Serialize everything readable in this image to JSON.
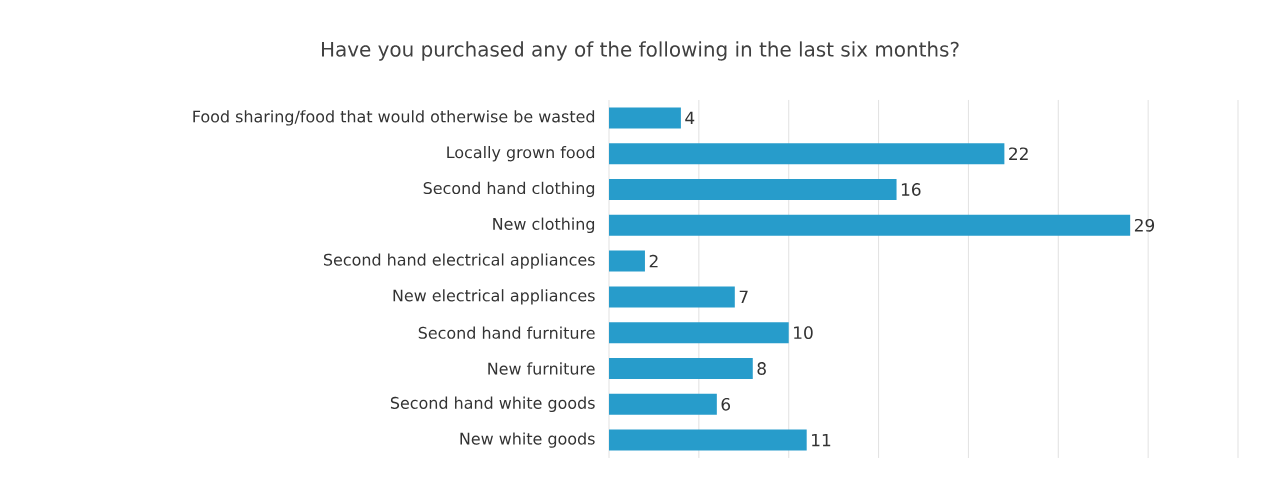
{
  "chart_data": {
    "type": "bar",
    "orientation": "horizontal",
    "title": "Have you purchased any of the following in the last six months?",
    "categories": [
      "Food sharing/food that would otherwise be wasted",
      "Locally grown food",
      "Second hand clothing",
      "New clothing",
      "Second hand electrical appliances",
      "New electrical appliances",
      "Second hand furniture",
      "New furniture",
      "Second hand white goods",
      "New white goods"
    ],
    "values": [
      4,
      22,
      16,
      29,
      2,
      7,
      10,
      8,
      6,
      11
    ],
    "color": "#279ccb",
    "xlim": [
      0,
      35
    ],
    "xticks": [
      {
        "value": 0,
        "label": null
      },
      {
        "value": 5,
        "label": null
      },
      {
        "value": 10,
        "label": null
      },
      {
        "value": 15,
        "label": null
      },
      {
        "value": 20,
        "label": null
      },
      {
        "value": 25,
        "label": null
      },
      {
        "value": 30,
        "label": null
      },
      {
        "value": 35,
        "label": null
      }
    ],
    "tick_labels": "y",
    "grid": "x",
    "data_labels": true
  }
}
